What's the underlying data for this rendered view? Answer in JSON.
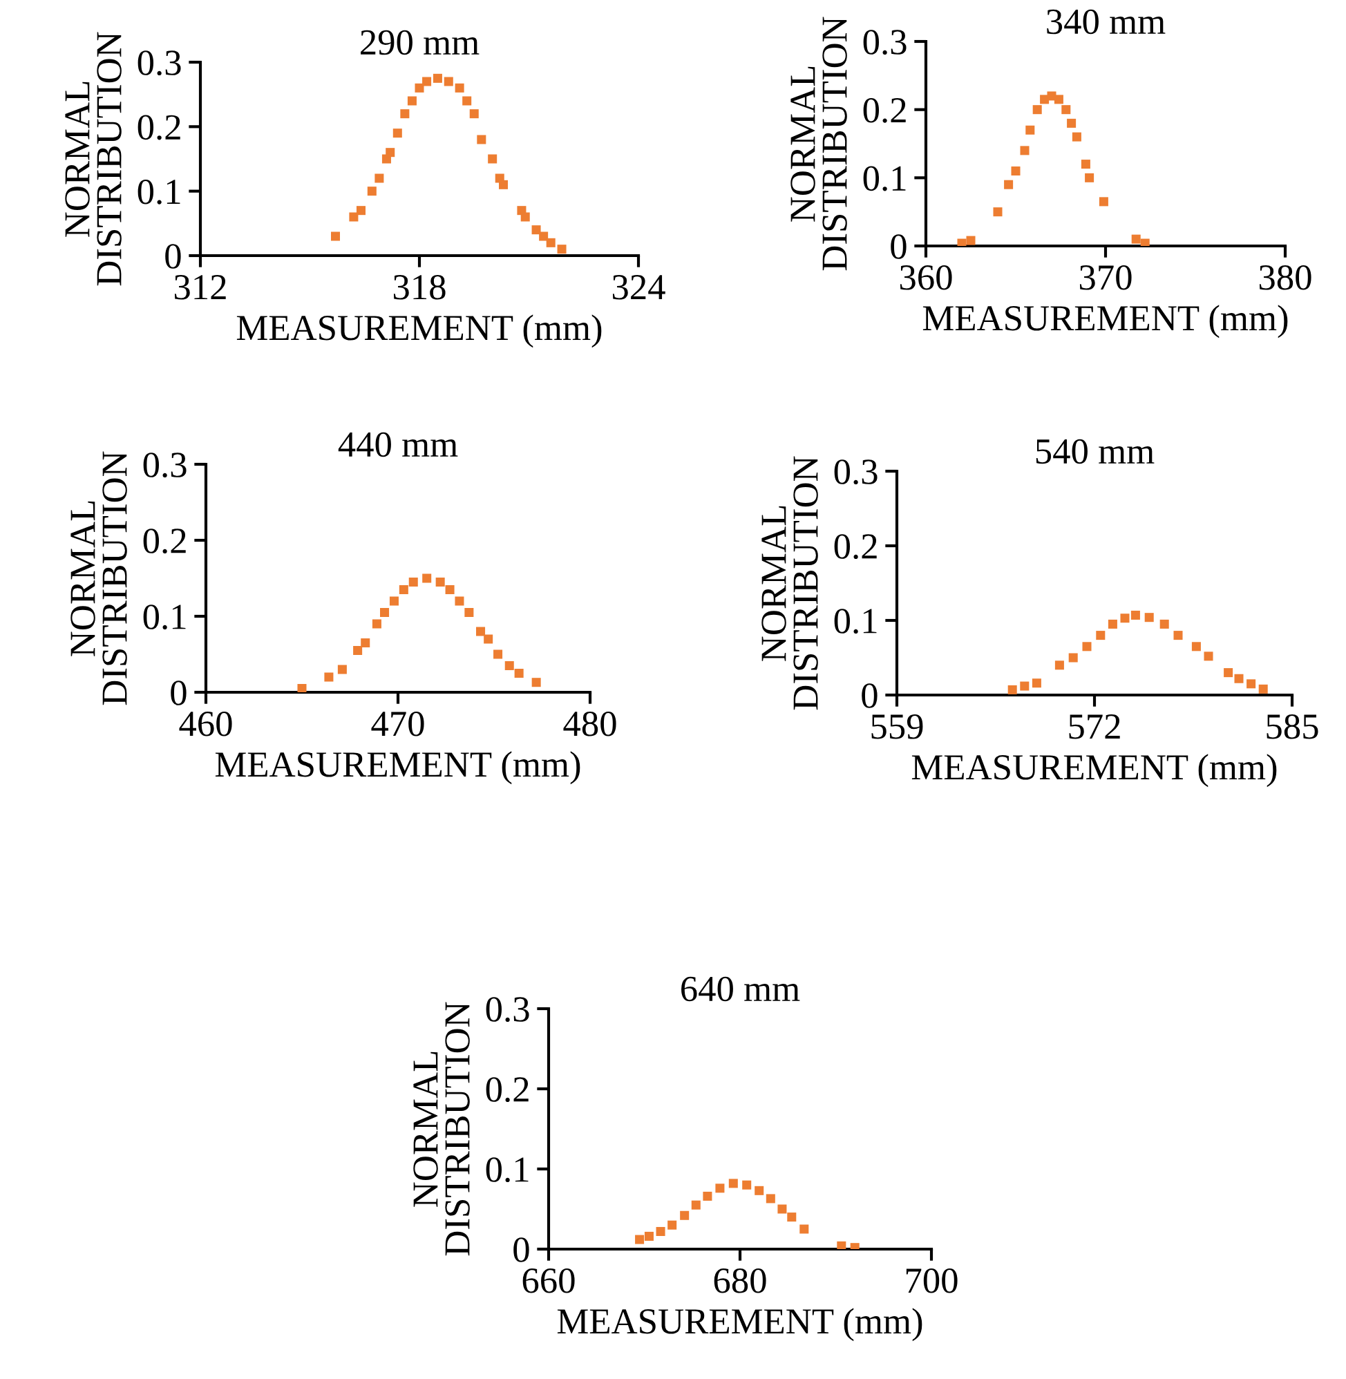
{
  "chart_data": [
    {
      "type": "scatter",
      "title": "290 mm",
      "xlabel": "MEASUREMENT (mm)",
      "ylabel": "NORMAL\nDISTRIBUTION",
      "xlim": [
        312,
        324
      ],
      "xticks": [
        312,
        318,
        324
      ],
      "ylim": [
        0,
        0.3
      ],
      "yticks": [
        0,
        0.1,
        0.2,
        0.3
      ],
      "marker": "square",
      "grid": false,
      "legend": false,
      "series": [
        {
          "color": "#ed7d31",
          "x": [
            315.7,
            316.2,
            316.4,
            316.7,
            316.9,
            317.1,
            317.2,
            317.4,
            317.6,
            317.8,
            318.0,
            318.2,
            318.5,
            318.8,
            319.1,
            319.3,
            319.5,
            319.7,
            320.0,
            320.2,
            320.3,
            320.8,
            320.9,
            321.2,
            321.4,
            321.6,
            321.9
          ],
          "values": [
            0.03,
            0.06,
            0.07,
            0.1,
            0.12,
            0.15,
            0.16,
            0.19,
            0.22,
            0.24,
            0.26,
            0.27,
            0.275,
            0.27,
            0.26,
            0.24,
            0.22,
            0.18,
            0.15,
            0.12,
            0.11,
            0.07,
            0.06,
            0.04,
            0.03,
            0.02,
            0.01
          ]
        }
      ]
    },
    {
      "type": "scatter",
      "title": "340 mm",
      "xlabel": "MEASUREMENT (mm)",
      "ylabel": "NORMAL\nDISTRIBUTION",
      "xlim": [
        360,
        380
      ],
      "xticks": [
        360,
        370,
        380
      ],
      "ylim": [
        0,
        0.3
      ],
      "yticks": [
        0,
        0.1,
        0.2,
        0.3
      ],
      "marker": "square",
      "grid": false,
      "legend": false,
      "series": [
        {
          "color": "#ed7d31",
          "x": [
            362.0,
            362.5,
            364.0,
            364.6,
            365.0,
            365.5,
            365.8,
            366.2,
            366.6,
            367.0,
            367.4,
            367.8,
            368.1,
            368.4,
            368.9,
            369.1,
            369.9,
            371.7,
            372.2
          ],
          "values": [
            0.004,
            0.008,
            0.05,
            0.09,
            0.11,
            0.14,
            0.17,
            0.2,
            0.215,
            0.22,
            0.215,
            0.2,
            0.18,
            0.16,
            0.12,
            0.1,
            0.065,
            0.01,
            0.004
          ]
        }
      ]
    },
    {
      "type": "scatter",
      "title": "440 mm",
      "xlabel": "MEASUREMENT (mm)",
      "ylabel": "NORMAL\nDISTRIBUTION",
      "xlim": [
        460,
        480
      ],
      "xticks": [
        460,
        470,
        480
      ],
      "ylim": [
        0,
        0.3
      ],
      "yticks": [
        0,
        0.1,
        0.2,
        0.3
      ],
      "marker": "square",
      "grid": false,
      "legend": false,
      "series": [
        {
          "color": "#ed7d31",
          "x": [
            465.0,
            466.4,
            467.1,
            467.9,
            468.3,
            468.9,
            469.3,
            469.8,
            470.3,
            470.8,
            471.5,
            472.2,
            472.7,
            473.2,
            473.7,
            474.3,
            474.7,
            475.2,
            475.8,
            476.3,
            477.2
          ],
          "values": [
            0.005,
            0.02,
            0.03,
            0.055,
            0.065,
            0.09,
            0.105,
            0.12,
            0.135,
            0.145,
            0.15,
            0.145,
            0.135,
            0.12,
            0.105,
            0.08,
            0.07,
            0.05,
            0.035,
            0.025,
            0.013
          ]
        }
      ]
    },
    {
      "type": "scatter",
      "title": "540 mm",
      "xlabel": "MEASUREMENT (mm)",
      "ylabel": "NORMAL\nDISTRIBUTION",
      "xlim": [
        559,
        585
      ],
      "xticks": [
        559,
        572,
        585
      ],
      "ylim": [
        0,
        0.3
      ],
      "yticks": [
        0,
        0.1,
        0.2,
        0.3
      ],
      "marker": "square",
      "grid": false,
      "legend": false,
      "series": [
        {
          "color": "#ed7d31",
          "x": [
            566.6,
            567.4,
            568.2,
            569.7,
            570.6,
            571.5,
            572.4,
            573.2,
            574.0,
            574.7,
            575.6,
            576.6,
            577.5,
            578.7,
            579.5,
            580.8,
            581.5,
            582.3,
            583.1
          ],
          "values": [
            0.007,
            0.012,
            0.016,
            0.04,
            0.05,
            0.065,
            0.08,
            0.095,
            0.103,
            0.107,
            0.104,
            0.095,
            0.08,
            0.065,
            0.052,
            0.03,
            0.022,
            0.015,
            0.008
          ]
        }
      ]
    },
    {
      "type": "scatter",
      "title": "640 mm",
      "xlabel": "MEASUREMENT (mm)",
      "ylabel": "NORMAL\nDISTRIBUTION",
      "xlim": [
        660,
        700
      ],
      "xticks": [
        660,
        680,
        700
      ],
      "ylim": [
        0,
        0.3
      ],
      "yticks": [
        0,
        0.1,
        0.2,
        0.3
      ],
      "marker": "square",
      "grid": false,
      "legend": false,
      "series": [
        {
          "color": "#ed7d31",
          "x": [
            669.5,
            670.5,
            671.7,
            672.9,
            674.2,
            675.4,
            676.6,
            677.9,
            679.3,
            680.7,
            682.0,
            683.2,
            684.4,
            685.4,
            686.7,
            690.6,
            692.0
          ],
          "values": [
            0.012,
            0.016,
            0.022,
            0.03,
            0.042,
            0.055,
            0.066,
            0.076,
            0.082,
            0.08,
            0.073,
            0.063,
            0.05,
            0.04,
            0.025,
            0.004,
            0.002
          ]
        }
      ]
    }
  ]
}
